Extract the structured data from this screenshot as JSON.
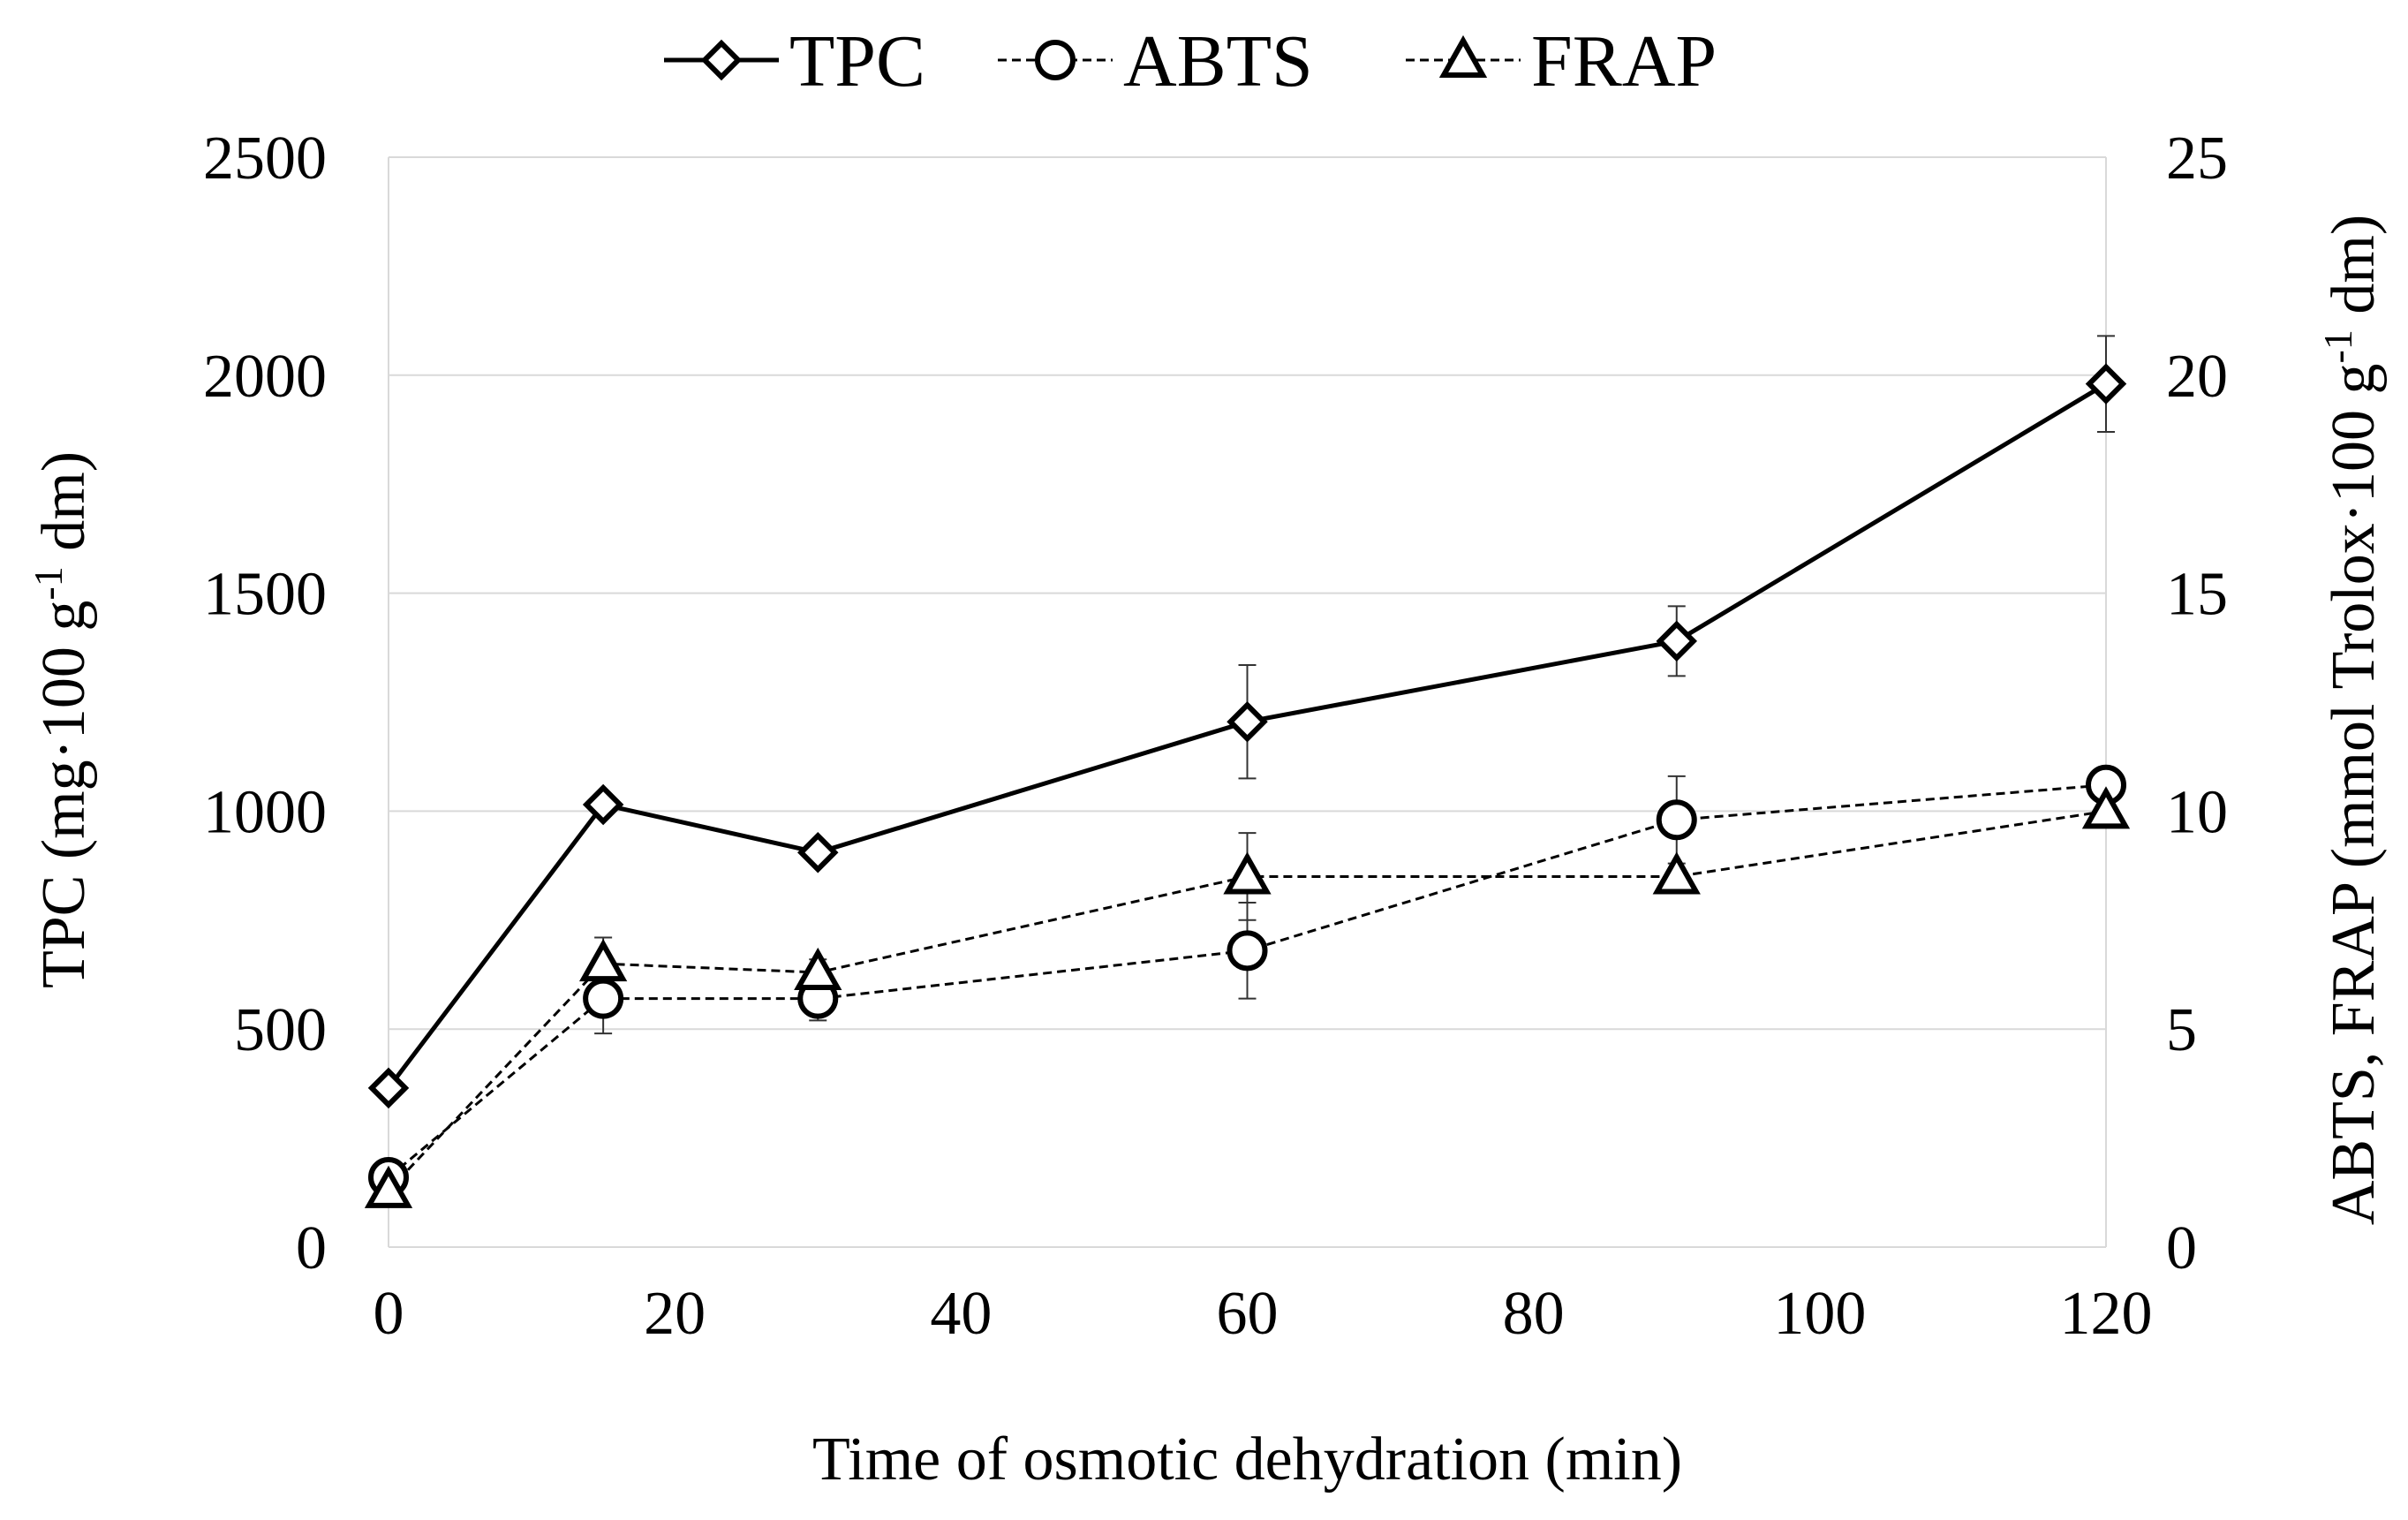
{
  "chart_data": {
    "type": "line",
    "x": [
      0,
      15,
      30,
      60,
      90,
      120
    ],
    "xlim": [
      0,
      120
    ],
    "xticks": [
      0,
      20,
      40,
      60,
      80,
      100,
      120
    ],
    "xlabel": "Time of osmotic dehydration (min)",
    "y_left": {
      "lim": [
        0,
        2500
      ],
      "ticks": [
        0,
        500,
        1000,
        1500,
        2000,
        2500
      ],
      "label_parts": [
        "TPC (mg·100 g",
        "-1",
        " dm)"
      ]
    },
    "y_right": {
      "lim": [
        0,
        25
      ],
      "ticks": [
        0,
        5,
        10,
        15,
        20,
        25
      ],
      "label_parts": [
        "ABTS, FRAP (mmol Trolox·100 g",
        "-1",
        " dm)"
      ]
    },
    "grid": true,
    "legend_position": "top-center",
    "series": [
      {
        "name": "TPC",
        "axis": "left",
        "marker": "diamond",
        "line": "solid",
        "values": [
          365,
          1015,
          905,
          1205,
          1390,
          1980
        ],
        "errors": [
          0,
          0,
          0,
          130,
          80,
          110
        ]
      },
      {
        "name": "ABTS",
        "axis": "right",
        "marker": "circle",
        "line": "dashed",
        "values": [
          1.6,
          5.7,
          5.7,
          6.8,
          9.8,
          10.6
        ],
        "errors": [
          0,
          0.8,
          0.5,
          1.1,
          1.0,
          0
        ]
      },
      {
        "name": "FRAP",
        "axis": "right",
        "marker": "triangle",
        "line": "dashed",
        "values": [
          1.3,
          6.5,
          6.3,
          8.5,
          8.5,
          10.0
        ],
        "errors": [
          0,
          0.6,
          0.3,
          1.0,
          0,
          0
        ]
      }
    ]
  }
}
